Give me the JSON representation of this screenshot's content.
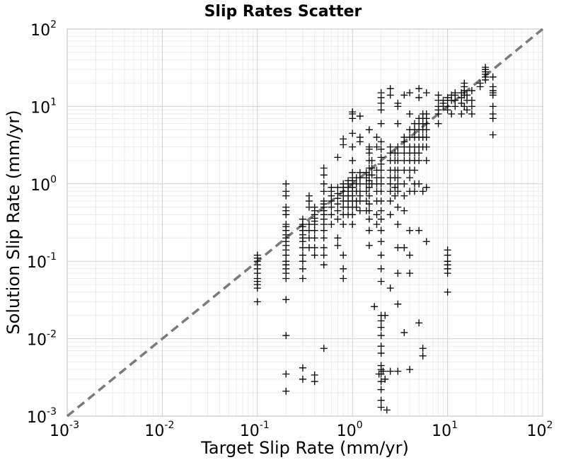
{
  "chart_data": {
    "type": "scatter",
    "title": "Slip Rates Scatter",
    "xlabel": "Target Slip Rate (mm/yr)",
    "ylabel": "Solution Slip Rate (mm/yr)",
    "xscale": "log",
    "yscale": "log",
    "xlim": [
      0.001,
      100
    ],
    "ylim": [
      0.001,
      100
    ],
    "grid": true,
    "marker": "+",
    "marker_color": "#000000",
    "reference_line": {
      "style": "dashed",
      "color": "#7a7a7a",
      "from": [
        0.001,
        0.001
      ],
      "to": [
        100,
        100
      ]
    },
    "x_ticks": [
      {
        "base": "10",
        "exp": "-3"
      },
      {
        "base": "10",
        "exp": "-2"
      },
      {
        "base": "10",
        "exp": "-1"
      },
      {
        "base": "10",
        "exp": "0"
      },
      {
        "base": "10",
        "exp": "1"
      },
      {
        "base": "10",
        "exp": "2"
      }
    ],
    "y_ticks": [
      {
        "base": "10",
        "exp": "-3"
      },
      {
        "base": "10",
        "exp": "-2"
      },
      {
        "base": "10",
        "exp": "-1"
      },
      {
        "base": "10",
        "exp": "0"
      },
      {
        "base": "10",
        "exp": "1"
      },
      {
        "base": "10",
        "exp": "2"
      }
    ],
    "points": [
      [
        0.1,
        0.07
      ],
      [
        0.1,
        0.08
      ],
      [
        0.1,
        0.09
      ],
      [
        0.1,
        0.1
      ],
      [
        0.1,
        0.11
      ],
      [
        0.1,
        0.12
      ],
      [
        0.1,
        0.06
      ],
      [
        0.1,
        0.055
      ],
      [
        0.1,
        0.05
      ],
      [
        0.1,
        0.045
      ],
      [
        0.1,
        0.03
      ],
      [
        0.2,
        0.1
      ],
      [
        0.2,
        0.12
      ],
      [
        0.2,
        0.14
      ],
      [
        0.2,
        0.16
      ],
      [
        0.2,
        0.18
      ],
      [
        0.2,
        0.2
      ],
      [
        0.2,
        0.22
      ],
      [
        0.2,
        0.25
      ],
      [
        0.2,
        0.28
      ],
      [
        0.2,
        0.3
      ],
      [
        0.2,
        0.09
      ],
      [
        0.2,
        0.08
      ],
      [
        0.2,
        0.07
      ],
      [
        0.2,
        0.06
      ],
      [
        0.2,
        0.4
      ],
      [
        0.2,
        0.45
      ],
      [
        0.2,
        0.5
      ],
      [
        0.2,
        0.7
      ],
      [
        0.2,
        0.8
      ],
      [
        0.2,
        1.0
      ],
      [
        0.2,
        0.032
      ],
      [
        0.2,
        0.011
      ],
      [
        0.2,
        0.0035
      ],
      [
        0.2,
        0.0021
      ],
      [
        0.3,
        0.15
      ],
      [
        0.3,
        0.18
      ],
      [
        0.3,
        0.2
      ],
      [
        0.3,
        0.22
      ],
      [
        0.3,
        0.25
      ],
      [
        0.3,
        0.28
      ],
      [
        0.3,
        0.3
      ],
      [
        0.3,
        0.35
      ],
      [
        0.3,
        0.12
      ],
      [
        0.3,
        0.1
      ],
      [
        0.3,
        0.08
      ],
      [
        0.3,
        0.06
      ],
      [
        0.3,
        0.0042
      ],
      [
        0.3,
        0.003
      ],
      [
        0.35,
        0.3
      ],
      [
        0.35,
        0.5
      ],
      [
        0.35,
        0.6
      ],
      [
        0.35,
        0.7
      ],
      [
        0.35,
        0.25
      ],
      [
        0.35,
        0.2
      ],
      [
        0.35,
        0.15
      ],
      [
        0.4,
        0.3
      ],
      [
        0.4,
        0.33
      ],
      [
        0.4,
        0.36
      ],
      [
        0.4,
        0.4
      ],
      [
        0.4,
        0.45
      ],
      [
        0.4,
        0.5
      ],
      [
        0.4,
        0.25
      ],
      [
        0.4,
        0.2
      ],
      [
        0.4,
        0.15
      ],
      [
        0.4,
        0.12
      ],
      [
        0.4,
        0.0034
      ],
      [
        0.4,
        0.0028
      ],
      [
        0.5,
        0.3
      ],
      [
        0.5,
        0.35
      ],
      [
        0.5,
        0.4
      ],
      [
        0.5,
        0.45
      ],
      [
        0.5,
        0.5
      ],
      [
        0.5,
        0.55
      ],
      [
        0.5,
        0.6
      ],
      [
        0.5,
        0.25
      ],
      [
        0.5,
        0.2
      ],
      [
        0.5,
        0.15
      ],
      [
        0.5,
        0.12
      ],
      [
        0.5,
        0.09
      ],
      [
        0.5,
        0.8
      ],
      [
        0.5,
        1.0
      ],
      [
        0.5,
        1.3
      ],
      [
        0.5,
        1.6
      ],
      [
        0.5,
        0.0075
      ],
      [
        0.6,
        0.5
      ],
      [
        0.6,
        0.6
      ],
      [
        0.6,
        0.7
      ],
      [
        0.6,
        0.8
      ],
      [
        0.6,
        0.4
      ],
      [
        0.6,
        0.9
      ],
      [
        0.6,
        0.3
      ],
      [
        0.7,
        0.45
      ],
      [
        0.7,
        0.55
      ],
      [
        0.7,
        0.65
      ],
      [
        0.7,
        0.75
      ],
      [
        0.7,
        0.9
      ],
      [
        0.7,
        0.35
      ],
      [
        0.7,
        0.2
      ],
      [
        0.7,
        0.16
      ],
      [
        0.7,
        2.2
      ],
      [
        0.8,
        0.5
      ],
      [
        0.8,
        0.6
      ],
      [
        0.8,
        0.7
      ],
      [
        0.8,
        0.8
      ],
      [
        0.8,
        0.9
      ],
      [
        0.8,
        1.0
      ],
      [
        0.8,
        0.4
      ],
      [
        0.8,
        0.3
      ],
      [
        0.8,
        0.12
      ],
      [
        0.8,
        0.08
      ],
      [
        0.8,
        0.06
      ],
      [
        0.8,
        3.8
      ],
      [
        0.8,
        3.2
      ],
      [
        0.9,
        0.6
      ],
      [
        0.9,
        0.7
      ],
      [
        0.9,
        0.8
      ],
      [
        0.9,
        0.9
      ],
      [
        0.9,
        1.0
      ],
      [
        0.9,
        1.1
      ],
      [
        0.9,
        0.5
      ],
      [
        0.9,
        0.4
      ],
      [
        1.0,
        0.5
      ],
      [
        1.0,
        0.6
      ],
      [
        1.0,
        0.7
      ],
      [
        1.0,
        0.8
      ],
      [
        1.0,
        0.9
      ],
      [
        1.0,
        1.0
      ],
      [
        1.0,
        1.1
      ],
      [
        1.0,
        1.2
      ],
      [
        1.0,
        1.4
      ],
      [
        1.0,
        0.4
      ],
      [
        1.0,
        0.3
      ],
      [
        1.0,
        8.5
      ],
      [
        1.0,
        8.0
      ],
      [
        1.0,
        7.0
      ],
      [
        1.0,
        4.5
      ],
      [
        1.0,
        3.0
      ],
      [
        1.0,
        2.0
      ],
      [
        1.1,
        0.8
      ],
      [
        1.1,
        1.0
      ],
      [
        1.1,
        1.2
      ],
      [
        1.1,
        0.6
      ],
      [
        1.1,
        0.5
      ],
      [
        1.2,
        0.6
      ],
      [
        1.2,
        0.7
      ],
      [
        1.2,
        0.8
      ],
      [
        1.2,
        1.0
      ],
      [
        1.2,
        1.2
      ],
      [
        1.2,
        1.4
      ],
      [
        1.2,
        0.45
      ],
      [
        1.2,
        7.5
      ],
      [
        1.2,
        4.0
      ],
      [
        1.2,
        3.5
      ],
      [
        1.4,
        0.8
      ],
      [
        1.4,
        1.0
      ],
      [
        1.4,
        1.2
      ],
      [
        1.4,
        1.4
      ],
      [
        1.4,
        0.6
      ],
      [
        1.4,
        0.45
      ],
      [
        1.5,
        0.9
      ],
      [
        1.5,
        1.1
      ],
      [
        1.5,
        1.3
      ],
      [
        1.5,
        1.6
      ],
      [
        1.5,
        2.0
      ],
      [
        1.5,
        2.5
      ],
      [
        1.5,
        3.0
      ],
      [
        1.5,
        0.7
      ],
      [
        1.5,
        0.55
      ],
      [
        1.5,
        0.45
      ],
      [
        1.5,
        0.35
      ],
      [
        1.5,
        0.25
      ],
      [
        1.5,
        0.16
      ],
      [
        1.5,
        2.8
      ],
      [
        1.5,
        5.0
      ],
      [
        1.6,
        1.0
      ],
      [
        1.6,
        1.3
      ],
      [
        1.6,
        1.6
      ],
      [
        1.6,
        2.0
      ],
      [
        1.8,
        1.0
      ],
      [
        1.8,
        1.2
      ],
      [
        1.8,
        1.5
      ],
      [
        1.8,
        0.8
      ],
      [
        1.8,
        0.6
      ],
      [
        1.8,
        0.4
      ],
      [
        1.8,
        0.3
      ],
      [
        1.8,
        4.0
      ],
      [
        1.8,
        3.0
      ],
      [
        2.0,
        1.0
      ],
      [
        2.0,
        1.2
      ],
      [
        2.0,
        1.5
      ],
      [
        2.0,
        1.8
      ],
      [
        2.0,
        2.2
      ],
      [
        2.0,
        2.8
      ],
      [
        2.0,
        3.5
      ],
      [
        2.0,
        0.8
      ],
      [
        2.0,
        0.6
      ],
      [
        2.0,
        0.45
      ],
      [
        2.0,
        0.35
      ],
      [
        2.0,
        0.25
      ],
      [
        2.0,
        0.18
      ],
      [
        2.0,
        0.12
      ],
      [
        2.0,
        0.08
      ],
      [
        2.0,
        0.055
      ],
      [
        2.0,
        0.02
      ],
      [
        2.0,
        0.017
      ],
      [
        2.0,
        0.014
      ],
      [
        2.0,
        0.011
      ],
      [
        2.0,
        0.008
      ],
      [
        2.0,
        0.0065
      ],
      [
        2.0,
        0.0045
      ],
      [
        2.0,
        0.004
      ],
      [
        2.0,
        0.0035
      ],
      [
        2.0,
        0.0028
      ],
      [
        2.0,
        0.0022
      ],
      [
        2.0,
        0.0016
      ],
      [
        2.0,
        0.0013
      ],
      [
        2.0,
        15.0
      ],
      [
        2.0,
        13.0
      ],
      [
        2.0,
        11.0
      ],
      [
        2.0,
        9.0
      ],
      [
        2.0,
        6.0
      ],
      [
        1.7,
        0.026
      ],
      [
        1.9,
        0.0035
      ],
      [
        2.1,
        0.0038
      ],
      [
        2.2,
        0.02
      ],
      [
        2.2,
        0.003
      ],
      [
        2.3,
        0.0012
      ],
      [
        2.5,
        1.5
      ],
      [
        2.5,
        2.0
      ],
      [
        2.5,
        2.5
      ],
      [
        2.5,
        3.0
      ],
      [
        2.5,
        1.2
      ],
      [
        2.5,
        1.0
      ],
      [
        2.5,
        0.8
      ],
      [
        2.5,
        0.6
      ],
      [
        2.5,
        0.4
      ],
      [
        2.5,
        0.045
      ],
      [
        2.5,
        0.0038
      ],
      [
        2.5,
        17.0
      ],
      [
        2.5,
        14.0
      ],
      [
        2.8,
        1.2
      ],
      [
        2.8,
        1.5
      ],
      [
        2.8,
        2.0
      ],
      [
        2.8,
        2.5
      ],
      [
        2.8,
        0.9
      ],
      [
        2.8,
        0.7
      ],
      [
        3.0,
        1.5
      ],
      [
        3.0,
        2.0
      ],
      [
        3.0,
        2.5
      ],
      [
        3.0,
        3.0
      ],
      [
        3.0,
        1.2
      ],
      [
        3.0,
        1.0
      ],
      [
        3.0,
        0.8
      ],
      [
        3.0,
        0.5
      ],
      [
        3.0,
        0.3
      ],
      [
        3.0,
        0.15
      ],
      [
        3.0,
        0.07
      ],
      [
        3.0,
        0.028
      ],
      [
        3.0,
        0.0038
      ],
      [
        3.0,
        11.0
      ],
      [
        3.0,
        10.0
      ],
      [
        3.0,
        6.0
      ],
      [
        3.5,
        2.0
      ],
      [
        3.5,
        2.5
      ],
      [
        3.5,
        3.0
      ],
      [
        3.5,
        3.5
      ],
      [
        3.5,
        4.0
      ],
      [
        3.5,
        1.5
      ],
      [
        3.5,
        1.0
      ],
      [
        3.5,
        0.7
      ],
      [
        3.5,
        0.45
      ],
      [
        3.5,
        0.15
      ],
      [
        3.5,
        0.012
      ],
      [
        3.5,
        14.0
      ],
      [
        4.0,
        2.0
      ],
      [
        4.0,
        2.5
      ],
      [
        4.0,
        3.0
      ],
      [
        4.0,
        4.0
      ],
      [
        4.0,
        5.0
      ],
      [
        4.0,
        1.5
      ],
      [
        4.0,
        1.2
      ],
      [
        4.0,
        0.8
      ],
      [
        4.0,
        0.25
      ],
      [
        4.0,
        0.12
      ],
      [
        4.0,
        0.07
      ],
      [
        4.0,
        0.004
      ],
      [
        4.0,
        15.0
      ],
      [
        4.0,
        8.0
      ],
      [
        4.5,
        3.0
      ],
      [
        4.5,
        4.0
      ],
      [
        4.5,
        5.0
      ],
      [
        4.5,
        6.0
      ],
      [
        4.5,
        2.5
      ],
      [
        4.5,
        2.0
      ],
      [
        4.5,
        1.5
      ],
      [
        4.5,
        0.8
      ],
      [
        4.5,
        1.0
      ],
      [
        5.0,
        3.0
      ],
      [
        5.0,
        4.0
      ],
      [
        5.0,
        5.0
      ],
      [
        5.0,
        6.0
      ],
      [
        5.0,
        7.0
      ],
      [
        5.0,
        2.5
      ],
      [
        5.0,
        2.0
      ],
      [
        5.0,
        1.0
      ],
      [
        5.0,
        0.25
      ],
      [
        5.0,
        0.016
      ],
      [
        5.0,
        17.0
      ],
      [
        5.0,
        13.0
      ],
      [
        5.5,
        4.0
      ],
      [
        5.5,
        5.0
      ],
      [
        5.5,
        6.0
      ],
      [
        5.5,
        7.0
      ],
      [
        5.5,
        8.0
      ],
      [
        5.5,
        3.0
      ],
      [
        5.5,
        0.8
      ],
      [
        5.5,
        0.006
      ],
      [
        5.5,
        0.0075
      ],
      [
        6.0,
        5.0
      ],
      [
        6.0,
        6.0
      ],
      [
        6.0,
        7.0
      ],
      [
        6.0,
        8.0
      ],
      [
        6.0,
        4.0
      ],
      [
        6.0,
        3.0
      ],
      [
        6.0,
        2.0
      ],
      [
        6.0,
        0.9
      ],
      [
        6.0,
        0.18
      ],
      [
        6.0,
        15.0
      ],
      [
        8.0,
        8.0
      ],
      [
        8.0,
        9.0
      ],
      [
        8.0,
        10.0
      ],
      [
        8.0,
        12.0
      ],
      [
        8.0,
        14.0
      ],
      [
        8.0,
        6.0
      ],
      [
        9.0,
        10.0
      ],
      [
        9.0,
        11.0
      ],
      [
        9.0,
        12.0
      ],
      [
        10.0,
        0.14
      ],
      [
        10.0,
        0.12
      ],
      [
        10.0,
        0.1
      ],
      [
        10.0,
        0.09
      ],
      [
        10.0,
        0.08
      ],
      [
        10.0,
        0.07
      ],
      [
        10.0,
        0.04
      ],
      [
        10.0,
        9.0
      ],
      [
        10.0,
        12.0
      ],
      [
        10.0,
        13.0
      ],
      [
        10.0,
        10.0
      ],
      [
        11.0,
        14.0
      ],
      [
        11.0,
        12.0
      ],
      [
        11.0,
        8.0
      ],
      [
        12.0,
        12.0
      ],
      [
        12.0,
        14.0
      ],
      [
        12.0,
        15.0
      ],
      [
        12.0,
        10.0
      ],
      [
        14.0,
        11.0
      ],
      [
        14.0,
        13.0
      ],
      [
        14.0,
        15.0
      ],
      [
        14.0,
        8.0
      ],
      [
        15.0,
        18.0
      ],
      [
        15.0,
        20.0
      ],
      [
        15.0,
        16.0
      ],
      [
        15.0,
        14.0
      ],
      [
        15.0,
        10.0
      ],
      [
        16.0,
        9.0
      ],
      [
        16.0,
        12.0
      ],
      [
        16.0,
        14.0
      ],
      [
        18.0,
        10.0
      ],
      [
        18.0,
        12.0
      ],
      [
        18.0,
        8.0
      ],
      [
        18.0,
        16.0
      ],
      [
        22.0,
        20.0
      ],
      [
        22.0,
        18.0
      ],
      [
        25.0,
        26.0
      ],
      [
        25.0,
        28.0
      ],
      [
        25.0,
        30.0
      ],
      [
        25.0,
        32.0
      ],
      [
        25.0,
        24.0
      ],
      [
        25.0,
        22.0
      ],
      [
        30.0,
        24.0
      ],
      [
        30.0,
        18.0
      ],
      [
        30.0,
        16.0
      ],
      [
        30.0,
        15.0
      ],
      [
        30.0,
        14.0
      ],
      [
        30.0,
        10.0
      ],
      [
        30.0,
        8.0
      ],
      [
        30.0,
        7.0
      ],
      [
        30.0,
        4.3
      ]
    ]
  }
}
